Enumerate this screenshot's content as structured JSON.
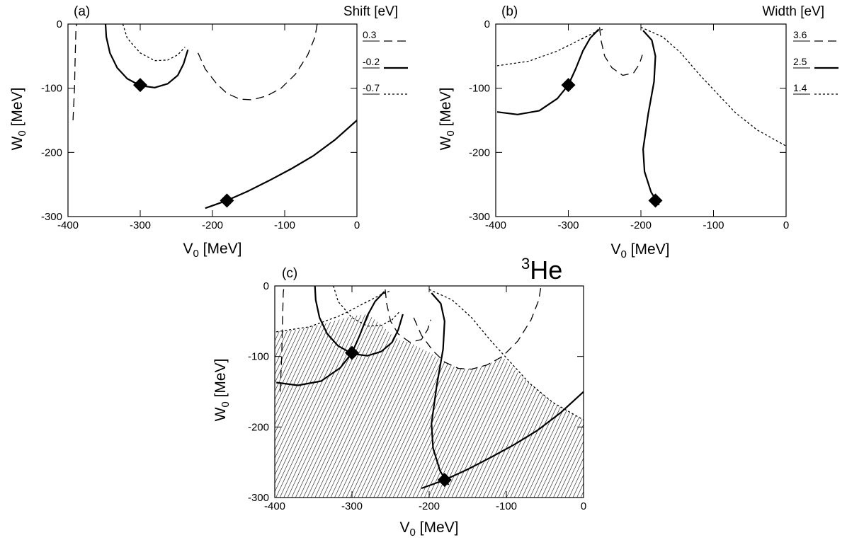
{
  "chart_data": [
    {
      "type": "contour",
      "panel_label": "(a)",
      "quantity_label": "Shift [eV]",
      "xlabel": "V",
      "xlabel_sub": "0",
      "xlabel_unit": " [MeV]",
      "ylabel": "W",
      "ylabel_sub": "0",
      "ylabel_unit": " [MeV]",
      "xlim": [
        -400,
        0
      ],
      "ylim": [
        -300,
        0
      ],
      "xticks": [
        "-400",
        "-300",
        "-200",
        "-100",
        "0"
      ],
      "yticks": [
        "0",
        "-100",
        "-200",
        "-300"
      ],
      "legend": [
        {
          "label": "0.3",
          "style": "dashed"
        },
        {
          "label": "-0.2",
          "style": "solid"
        },
        {
          "label": "-0.7",
          "style": "dotted"
        }
      ],
      "contours": [
        {
          "level": "0.3",
          "style": "dashed",
          "segments": [
            [
              [
                -393,
                -150
              ],
              [
                -391,
                -100
              ],
              [
                -390,
                -50
              ],
              [
                -389,
                -10
              ],
              [
                -388,
                0
              ]
            ],
            [
              [
                -220,
                -45
              ],
              [
                -210,
                -70
              ],
              [
                -195,
                -92
              ],
              [
                -180,
                -108
              ],
              [
                -162,
                -117
              ],
              [
                -145,
                -118
              ],
              [
                -125,
                -112
              ],
              [
                -105,
                -100
              ],
              [
                -85,
                -78
              ],
              [
                -68,
                -48
              ],
              [
                -58,
                -20
              ],
              [
                -55,
                0
              ]
            ]
          ]
        },
        {
          "level": "-0.2",
          "style": "solid",
          "segments": [
            [
              [
                -348,
                0
              ],
              [
                -347,
                -20
              ],
              [
                -342,
                -45
              ],
              [
                -332,
                -68
              ],
              [
                -318,
                -85
              ],
              [
                -300,
                -96
              ],
              [
                -280,
                -99
              ],
              [
                -262,
                -93
              ],
              [
                -248,
                -80
              ],
              [
                -240,
                -62
              ],
              [
                -234,
                -40
              ]
            ],
            [
              [
                -210,
                -287
              ],
              [
                -180,
                -275
              ],
              [
                -150,
                -260
              ],
              [
                -120,
                -243
              ],
              [
                -90,
                -225
              ],
              [
                -60,
                -205
              ],
              [
                -30,
                -180
              ],
              [
                0,
                -150
              ]
            ]
          ]
        },
        {
          "level": "-0.7",
          "style": "dotted",
          "segments": [
            [
              [
                -324,
                0
              ],
              [
                -318,
                -22
              ],
              [
                -300,
                -45
              ],
              [
                -280,
                -57
              ],
              [
                -262,
                -56
              ],
              [
                -248,
                -48
              ],
              [
                -238,
                -36
              ]
            ]
          ]
        }
      ],
      "markers": [
        [
          -300,
          -95
        ],
        [
          -180,
          -275
        ]
      ]
    },
    {
      "type": "contour",
      "panel_label": "(b)",
      "quantity_label": "Width [eV]",
      "xlabel": "V",
      "xlabel_sub": "0",
      "xlabel_unit": " [MeV]",
      "ylabel": "W",
      "ylabel_sub": "0",
      "ylabel_unit": " [MeV]",
      "xlim": [
        -400,
        0
      ],
      "ylim": [
        -300,
        0
      ],
      "xticks": [
        "-400",
        "-300",
        "-200",
        "-100",
        "0"
      ],
      "yticks": [
        "0",
        "-100",
        "-200",
        "-300"
      ],
      "legend": [
        {
          "label": "3.6",
          "style": "dashed"
        },
        {
          "label": "2.5",
          "style": "solid"
        },
        {
          "label": "1.4",
          "style": "dotted"
        }
      ],
      "contours": [
        {
          "level": "3.6",
          "style": "dashed",
          "segments": [
            [
              [
                -257,
                -5
              ],
              [
                -255,
                -25
              ],
              [
                -250,
                -50
              ],
              [
                -240,
                -68
              ],
              [
                -225,
                -80
              ],
              [
                -210,
                -76
              ],
              [
                -202,
                -62
              ],
              [
                -198,
                -48
              ]
            ]
          ]
        },
        {
          "level": "2.5",
          "style": "solid",
          "segments": [
            [
              [
                -398,
                -137
              ],
              [
                -370,
                -141
              ],
              [
                -340,
                -135
              ],
              [
                -315,
                -116
              ],
              [
                -300,
                -95
              ],
              [
                -290,
                -70
              ],
              [
                -280,
                -42
              ],
              [
                -270,
                -22
              ],
              [
                -258,
                -8
              ]
            ],
            [
              [
                -197,
                -10
              ],
              [
                -185,
                -25
              ],
              [
                -180,
                -50
              ],
              [
                -182,
                -90
              ],
              [
                -190,
                -140
              ],
              [
                -197,
                -195
              ],
              [
                -195,
                -230
              ],
              [
                -186,
                -262
              ],
              [
                -175,
                -282
              ]
            ]
          ]
        },
        {
          "level": "1.4",
          "style": "dotted",
          "segments": [
            [
              [
                -398,
                -65
              ],
              [
                -355,
                -58
              ],
              [
                -315,
                -42
              ],
              [
                -285,
                -25
              ],
              [
                -262,
                -12
              ],
              [
                -250,
                -7
              ]
            ],
            [
              [
                -200,
                -5
              ],
              [
                -170,
                -20
              ],
              [
                -145,
                -45
              ],
              [
                -120,
                -78
              ],
              [
                -95,
                -108
              ],
              [
                -70,
                -138
              ],
              [
                -40,
                -165
              ],
              [
                0,
                -190
              ]
            ]
          ]
        }
      ],
      "markers": [
        [
          -300,
          -95
        ],
        [
          -180,
          -275
        ]
      ]
    },
    {
      "type": "contour",
      "panel_label": "(c)",
      "nucleus": "He",
      "nucleus_mass": "3",
      "xlabel": "V",
      "xlabel_sub": "0",
      "xlabel_unit": " [MeV]",
      "ylabel": "W",
      "ylabel_sub": "0",
      "ylabel_unit": " [MeV]",
      "xlim": [
        -400,
        0
      ],
      "ylim": [
        -300,
        0
      ],
      "xticks": [
        "-400",
        "-300",
        "-200",
        "-100",
        "0"
      ],
      "yticks": [
        "0",
        "-100",
        "-200",
        "-300"
      ],
      "hatched_region": "below the overlapping contour boundary",
      "shaded_boundary": [
        [
          -400,
          -300
        ],
        [
          -400,
          -65
        ],
        [
          -370,
          -62
        ],
        [
          -330,
          -52
        ],
        [
          -300,
          -43
        ],
        [
          -280,
          -40
        ],
        [
          -270,
          -48
        ],
        [
          -262,
          -55
        ],
        [
          -250,
          -68
        ],
        [
          -238,
          -77
        ],
        [
          -225,
          -80
        ],
        [
          -215,
          -86
        ],
        [
          -200,
          -94
        ],
        [
          -185,
          -105
        ],
        [
          -170,
          -114
        ],
        [
          -150,
          -118
        ],
        [
          -125,
          -112
        ],
        [
          -105,
          -100
        ],
        [
          -90,
          -118
        ],
        [
          -70,
          -138
        ],
        [
          -40,
          -165
        ],
        [
          0,
          -190
        ],
        [
          0,
          -300
        ]
      ],
      "contours": [
        {
          "level": "shift 0.3",
          "style": "dashed",
          "segments": [
            [
              [
                -393,
                -150
              ],
              [
                -391,
                -100
              ],
              [
                -390,
                -50
              ],
              [
                -389,
                -10
              ],
              [
                -388,
                0
              ]
            ],
            [
              [
                -220,
                -45
              ],
              [
                -210,
                -70
              ],
              [
                -195,
                -92
              ],
              [
                -180,
                -108
              ],
              [
                -162,
                -117
              ],
              [
                -145,
                -118
              ],
              [
                -125,
                -112
              ],
              [
                -105,
                -100
              ],
              [
                -85,
                -78
              ],
              [
                -68,
                -48
              ],
              [
                -58,
                -20
              ],
              [
                -55,
                0
              ]
            ]
          ]
        },
        {
          "level": "shift -0.2",
          "style": "solid",
          "segments": [
            [
              [
                -348,
                0
              ],
              [
                -347,
                -20
              ],
              [
                -342,
                -45
              ],
              [
                -332,
                -68
              ],
              [
                -318,
                -85
              ],
              [
                -300,
                -96
              ],
              [
                -280,
                -99
              ],
              [
                -262,
                -93
              ],
              [
                -248,
                -80
              ],
              [
                -240,
                -62
              ],
              [
                -234,
                -40
              ]
            ],
            [
              [
                -210,
                -287
              ],
              [
                -180,
                -275
              ],
              [
                -150,
                -260
              ],
              [
                -120,
                -243
              ],
              [
                -90,
                -225
              ],
              [
                -60,
                -205
              ],
              [
                -30,
                -180
              ],
              [
                0,
                -150
              ]
            ]
          ]
        },
        {
          "level": "shift -0.7",
          "style": "dotted",
          "segments": [
            [
              [
                -324,
                0
              ],
              [
                -318,
                -22
              ],
              [
                -300,
                -45
              ],
              [
                -280,
                -57
              ],
              [
                -262,
                -56
              ],
              [
                -248,
                -48
              ],
              [
                -238,
                -36
              ]
            ]
          ]
        },
        {
          "level": "width 3.6",
          "style": "dashed",
          "segments": [
            [
              [
                -257,
                -5
              ],
              [
                -255,
                -25
              ],
              [
                -250,
                -50
              ],
              [
                -240,
                -68
              ],
              [
                -225,
                -80
              ],
              [
                -210,
                -76
              ],
              [
                -202,
                -62
              ],
              [
                -198,
                -48
              ]
            ]
          ]
        },
        {
          "level": "width 2.5",
          "style": "solid",
          "segments": [
            [
              [
                -398,
                -137
              ],
              [
                -370,
                -141
              ],
              [
                -340,
                -135
              ],
              [
                -315,
                -116
              ],
              [
                -300,
                -95
              ],
              [
                -290,
                -70
              ],
              [
                -280,
                -42
              ],
              [
                -270,
                -22
              ],
              [
                -258,
                -8
              ]
            ],
            [
              [
                -197,
                -10
              ],
              [
                -185,
                -25
              ],
              [
                -180,
                -50
              ],
              [
                -182,
                -90
              ],
              [
                -190,
                -140
              ],
              [
                -197,
                -195
              ],
              [
                -195,
                -230
              ],
              [
                -186,
                -262
              ],
              [
                -175,
                -282
              ]
            ]
          ]
        },
        {
          "level": "width 1.4",
          "style": "dotted",
          "segments": [
            [
              [
                -398,
                -65
              ],
              [
                -355,
                -58
              ],
              [
                -315,
                -42
              ],
              [
                -285,
                -25
              ],
              [
                -262,
                -12
              ],
              [
                -250,
                -7
              ]
            ],
            [
              [
                -200,
                -5
              ],
              [
                -170,
                -20
              ],
              [
                -145,
                -45
              ],
              [
                -120,
                -78
              ],
              [
                -95,
                -108
              ],
              [
                -70,
                -138
              ],
              [
                -40,
                -165
              ],
              [
                0,
                -190
              ]
            ]
          ]
        }
      ],
      "markers": [
        [
          -300,
          -95
        ],
        [
          -180,
          -275
        ]
      ]
    }
  ]
}
